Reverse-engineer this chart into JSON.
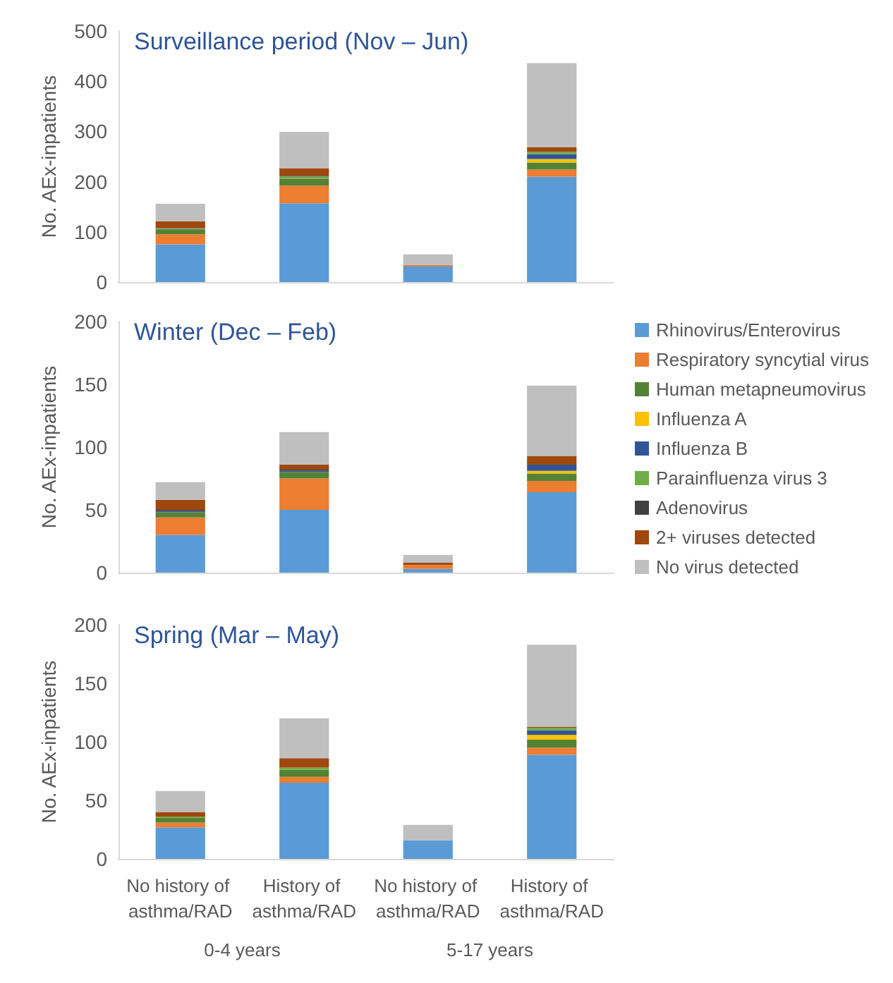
{
  "chart_data": [
    {
      "type": "bar",
      "stacked": true,
      "title": "Surveillance period (Nov – Jun)",
      "ylabel": "No. AEx-inpatients",
      "categories": [
        "No history of asthma/RAD",
        "History of asthma/RAD",
        "No history of asthma/RAD",
        "History of asthma/RAD"
      ],
      "ylim": [
        0,
        500
      ],
      "yticks": [
        0,
        100,
        200,
        300,
        400,
        500
      ],
      "tick_labels": "y",
      "legend": false,
      "grid": false,
      "series": [
        {
          "color": "#5b9bd5",
          "values": [
            75,
            157,
            31,
            210
          ]
        },
        {
          "color": "#ed7d31",
          "values": [
            20,
            35,
            2,
            14
          ]
        },
        {
          "color": "#548235",
          "values": [
            10,
            14,
            0,
            14
          ]
        },
        {
          "color": "#ffc000",
          "values": [
            0,
            1,
            0,
            7
          ]
        },
        {
          "color": "#2f5597",
          "values": [
            1,
            1,
            0,
            10
          ]
        },
        {
          "color": "#70ad47",
          "values": [
            1,
            3,
            0,
            4
          ]
        },
        {
          "color": "#404040",
          "values": [
            0,
            1,
            0,
            0
          ]
        },
        {
          "color": "#9e480e",
          "values": [
            14,
            15,
            1,
            10
          ]
        },
        {
          "color": "#bfbfbf",
          "values": [
            35,
            72,
            21,
            167
          ]
        }
      ]
    },
    {
      "type": "bar",
      "stacked": true,
      "title": "Winter (Dec – Feb)",
      "ylabel": "No. AEx-inpatients",
      "categories": [
        "No history of asthma/RAD",
        "History of asthma/RAD",
        "No history of asthma/RAD",
        "History of asthma/RAD"
      ],
      "ylim": [
        0,
        200
      ],
      "yticks": [
        0,
        50,
        100,
        150,
        200
      ],
      "tick_labels": "y",
      "legend": "right",
      "grid": false,
      "series": [
        {
          "name": "Rhinovirus/Enterovirus",
          "color": "#5b9bd5",
          "values": [
            30,
            50,
            3,
            64
          ]
        },
        {
          "name": "Respiratory syncytial virus",
          "color": "#ed7d31",
          "values": [
            14,
            25,
            3,
            9
          ]
        },
        {
          "name": "Human metapneumovirus",
          "color": "#548235",
          "values": [
            4,
            5,
            0,
            6
          ]
        },
        {
          "name": "Influenza A",
          "color": "#ffc000",
          "values": [
            0,
            0,
            0,
            2
          ]
        },
        {
          "name": "Influenza B",
          "color": "#2f5597",
          "values": [
            1,
            1,
            0,
            5
          ]
        },
        {
          "name": "Parainfluenza virus 3",
          "color": "#70ad47",
          "values": [
            0,
            0,
            0,
            0
          ]
        },
        {
          "name": "Adenovirus",
          "color": "#404040",
          "values": [
            1,
            1,
            0,
            0
          ]
        },
        {
          "name": "2+ viruses detected",
          "color": "#9e480e",
          "values": [
            8,
            4,
            2,
            7
          ]
        },
        {
          "name": "No virus detected",
          "color": "#bfbfbf",
          "values": [
            14,
            26,
            6,
            56
          ]
        }
      ]
    },
    {
      "type": "bar",
      "stacked": true,
      "title": "Spring (Mar – May)",
      "ylabel": "No. AEx-inpatients",
      "categories": [
        "No history of asthma/RAD",
        "History of asthma/RAD",
        "No history of asthma/RAD",
        "History of asthma/RAD"
      ],
      "ylim": [
        0,
        200
      ],
      "yticks": [
        0,
        50,
        100,
        150,
        200
      ],
      "legend": false,
      "grid": false,
      "annotations": [
        "0-4 years",
        "5-17 years"
      ],
      "series": [
        {
          "color": "#5b9bd5",
          "values": [
            27,
            65,
            16,
            89
          ]
        },
        {
          "color": "#ed7d31",
          "values": [
            4,
            5,
            0,
            6
          ]
        },
        {
          "color": "#548235",
          "values": [
            4,
            6,
            0,
            7
          ]
        },
        {
          "color": "#ffc000",
          "values": [
            0,
            0,
            0,
            4
          ]
        },
        {
          "color": "#2f5597",
          "values": [
            0,
            0,
            0,
            4
          ]
        },
        {
          "color": "#70ad47",
          "values": [
            1,
            2,
            0,
            2
          ]
        },
        {
          "color": "#404040",
          "values": [
            0,
            0,
            0,
            0
          ]
        },
        {
          "color": "#9e480e",
          "values": [
            4,
            8,
            0,
            1
          ]
        },
        {
          "color": "#bfbfbf",
          "values": [
            18,
            34,
            13,
            70
          ]
        }
      ]
    }
  ]
}
